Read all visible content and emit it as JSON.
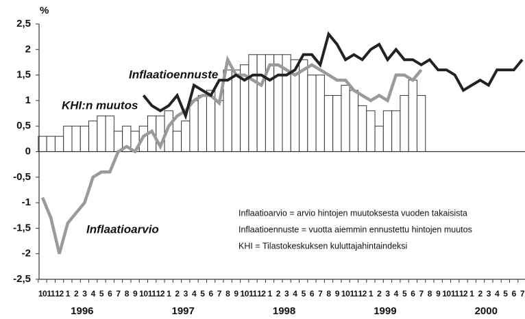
{
  "chart_data": {
    "type": "bar-line",
    "y_unit": "%",
    "categories": [
      "10",
      "11",
      "12",
      "1",
      "2",
      "3",
      "4",
      "5",
      "6",
      "7",
      "8",
      "9",
      "10",
      "11",
      "12",
      "1",
      "2",
      "3",
      "4",
      "5",
      "6",
      "7",
      "8",
      "9",
      "10",
      "11",
      "12",
      "1",
      "2",
      "3",
      "4",
      "5",
      "6",
      "7",
      "8",
      "9",
      "10",
      "11",
      "12",
      "1",
      "2",
      "3",
      "4",
      "5",
      "6",
      "7",
      "8",
      "9",
      "10",
      "11",
      "12",
      "1",
      "2",
      "3",
      "4",
      "5",
      "6",
      "7"
    ],
    "years": [
      "1996",
      "1997",
      "1998",
      "1999",
      "2000"
    ],
    "ylim": [
      -2.5,
      2.5
    ],
    "yticks": [
      {
        "value": 2.5,
        "label": "2,5"
      },
      2,
      {
        "value": 1.5,
        "label": "1,5"
      },
      1,
      {
        "value": 0.5,
        "label": "0,5"
      },
      0,
      {
        "value": -0.5,
        "label": "-0,5"
      },
      -1,
      {
        "value": -1.5,
        "label": "-1,5"
      },
      -2,
      {
        "value": -2.5,
        "label": "-2,5"
      }
    ],
    "series": [
      {
        "name": "KHI:n muutos",
        "kind": "bar",
        "color": "#ffffff",
        "values": [
          0.3,
          0.3,
          0.3,
          0.5,
          0.5,
          0.5,
          0.6,
          0.7,
          0.7,
          0.4,
          0.5,
          0.4,
          0.5,
          0.7,
          0.7,
          0.8,
          0.4,
          0.6,
          1.0,
          1.1,
          1.2,
          1.0,
          1.6,
          1.6,
          1.7,
          1.9,
          1.9,
          1.9,
          1.9,
          1.9,
          1.8,
          1.8,
          1.5,
          1.5,
          1.1,
          1.1,
          1.3,
          1.2,
          0.9,
          0.8,
          0.5,
          0.8,
          0.8,
          1.1,
          1.4,
          1.1,
          null,
          null,
          null,
          null,
          null,
          null,
          null,
          null,
          null,
          null,
          null,
          null
        ]
      },
      {
        "name": "Inflaatioarvio",
        "kind": "line",
        "color": "#9a9a9a",
        "values": [
          -0.9,
          -1.3,
          -2.0,
          -1.4,
          -1.2,
          -1.0,
          -0.5,
          -0.4,
          -0.4,
          0.0,
          0.1,
          0.0,
          0.3,
          0.4,
          0.1,
          0.5,
          0.7,
          0.8,
          1.0,
          1.1,
          1.1,
          0.95,
          1.8,
          1.5,
          1.5,
          1.4,
          1.3,
          1.7,
          1.7,
          1.6,
          1.5,
          1.6,
          1.7,
          1.6,
          1.5,
          1.4,
          1.4,
          1.2,
          1.1,
          1.0,
          1.1,
          1.0,
          1.5,
          1.5,
          1.4,
          1.6,
          null,
          null,
          null,
          null,
          null,
          null,
          null,
          null,
          null,
          null,
          null,
          null
        ]
      },
      {
        "name": "Inflaatioennuste",
        "kind": "line",
        "color": "#222222",
        "values": [
          null,
          null,
          null,
          null,
          null,
          null,
          null,
          null,
          null,
          null,
          null,
          null,
          1.1,
          0.9,
          0.8,
          0.9,
          1.1,
          0.7,
          1.3,
          1.2,
          1.1,
          1.4,
          1.4,
          1.5,
          1.4,
          1.5,
          1.5,
          1.4,
          1.5,
          1.5,
          1.6,
          1.9,
          1.9,
          1.7,
          2.3,
          2.1,
          1.8,
          1.9,
          1.8,
          2.0,
          2.1,
          1.8,
          2.0,
          1.8,
          1.8,
          1.7,
          1.8,
          1.6,
          1.6,
          1.5,
          1.2,
          1.3,
          1.4,
          1.3,
          1.6,
          1.6,
          1.6,
          1.8
        ]
      }
    ],
    "notes": [
      "Inflaatioarvio = arvio hintojen muutoksesta vuoden takaisista",
      "Inflaatioennuste = vuotta aiemmin ennustettu hintojen muutos",
      "KHI = Tilastokeskuksen kuluttajahintaindeksi"
    ]
  }
}
